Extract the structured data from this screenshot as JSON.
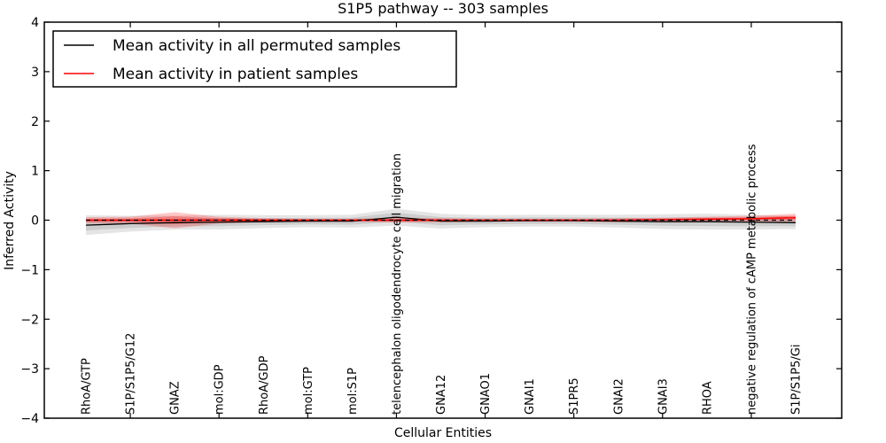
{
  "title": "S1P5 pathway -- 303 samples",
  "xlabel": "Cellular Entities",
  "ylabel": "Inferred Activity",
  "legend": {
    "items": [
      {
        "label": "Mean activity in all permuted samples",
        "color": "#000000"
      },
      {
        "label": "Mean activity in patient samples",
        "color": "#ff0000"
      }
    ]
  },
  "colors": {
    "permuted_line": "#000000",
    "patient_line": "#ff0000",
    "permuted_band": "rgba(0,0,0,0.10)",
    "patient_band_outer": "rgba(255,0,0,0.22)",
    "patient_band_inner": "rgba(255,0,0,0.28)",
    "zero_line": "#000000"
  },
  "chart_data": {
    "type": "line",
    "title": "S1P5 pathway -- 303 samples",
    "xlabel": "Cellular Entities",
    "ylabel": "Inferred Activity",
    "ylim": [
      -4,
      4
    ],
    "ytick_labels": [
      "4",
      "3",
      "2",
      "1",
      "0",
      "−1",
      "−2",
      "−3",
      "−4"
    ],
    "ytick_values": [
      4,
      3,
      2,
      1,
      0,
      -1,
      -2,
      -3,
      -4
    ],
    "grid": false,
    "legend_position": "upper left",
    "categories": [
      "RhoA/GTP",
      "S1P/S1P5/G12",
      "GNAZ",
      "mol:GDP",
      "RhoA/GDP",
      "mol:GTP",
      "mol:S1P",
      "telencephalon oligodendrocyte cell migration",
      "GNA12",
      "GNAO1",
      "GNAI1",
      "S1PR5",
      "GNAI2",
      "GNAI3",
      "RHOA",
      "negative regulation of cAMP metabolic process",
      "S1P/S1P5/Gi"
    ],
    "series": [
      {
        "name": "Mean activity in all permuted samples",
        "color": "#000000",
        "style": "solid",
        "values": [
          -0.1,
          -0.07,
          -0.05,
          -0.04,
          -0.03,
          -0.02,
          -0.02,
          0.06,
          -0.02,
          -0.02,
          -0.01,
          -0.01,
          -0.02,
          -0.03,
          -0.03,
          -0.04,
          -0.05
        ],
        "band_halfwidth": [
          0.2,
          0.16,
          0.14,
          0.15,
          0.13,
          0.12,
          0.13,
          0.17,
          0.15,
          0.12,
          0.12,
          0.12,
          0.13,
          0.15,
          0.16,
          0.15,
          0.13
        ]
      },
      {
        "name": "Mean activity in patient samples",
        "color": "#ff0000",
        "style": "solid",
        "values": [
          0,
          0,
          0,
          0,
          0,
          0,
          0,
          0,
          0,
          0,
          0,
          0,
          0,
          0.01,
          0.02,
          0.03,
          0.05
        ],
        "band_halfwidth": [
          0.06,
          0.07,
          0.16,
          0.07,
          0.04,
          0.03,
          0.03,
          0.05,
          0.04,
          0.03,
          0.03,
          0.03,
          0.04,
          0.04,
          0.05,
          0.06,
          0.08
        ]
      },
      {
        "name": "zero reference",
        "color": "#000000",
        "style": "dashed",
        "values": [
          0,
          0,
          0,
          0,
          0,
          0,
          0,
          0,
          0,
          0,
          0,
          0,
          0,
          0,
          0,
          0,
          0
        ]
      }
    ]
  }
}
